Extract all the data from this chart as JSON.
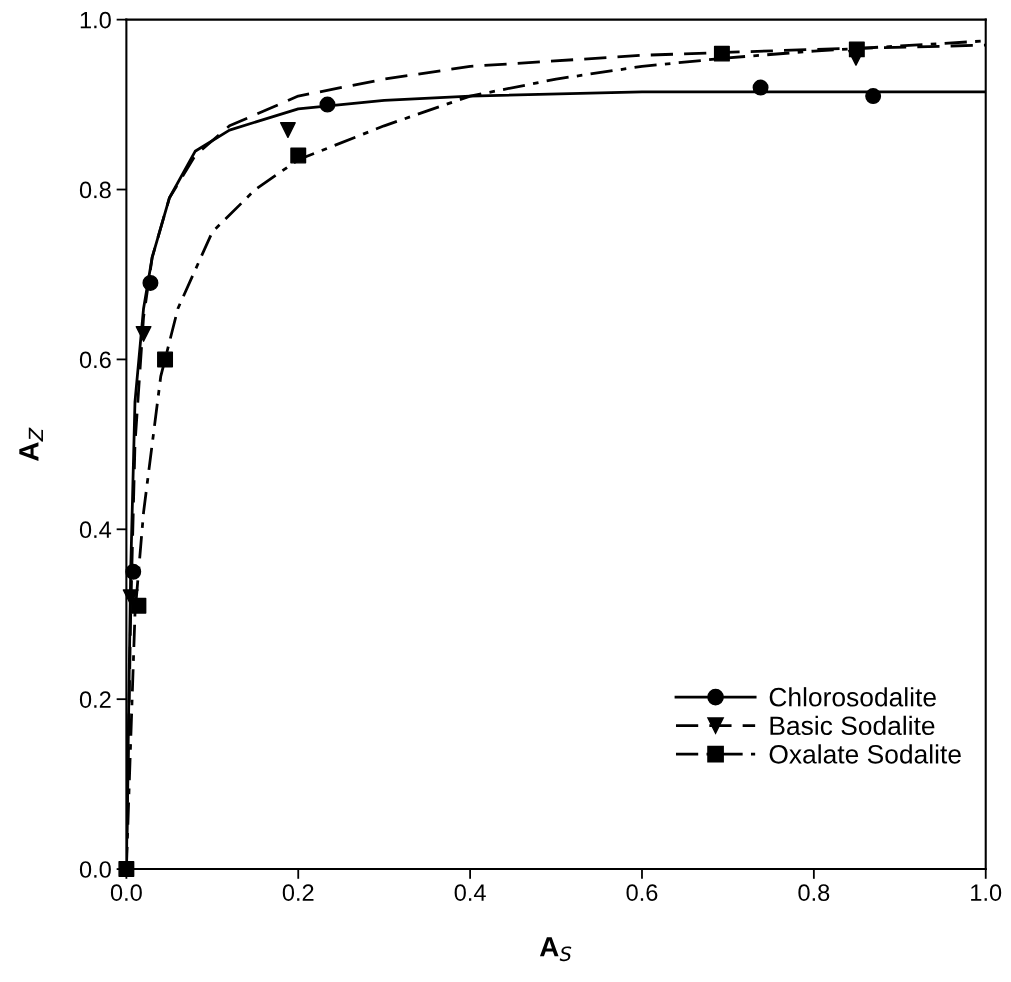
{
  "chart_data": {
    "type": "line",
    "xlabel": "A$_{S}$",
    "ylabel": "A$_{Z}$",
    "xlim": [
      0,
      1.0
    ],
    "ylim": [
      0,
      1.0
    ],
    "xticks": [
      {
        "value": 0,
        "label": "0.0"
      },
      {
        "value": 0.2,
        "label": "0.2"
      },
      {
        "value": 0.4,
        "label": "0.4"
      },
      {
        "value": 0.6,
        "label": "0.6"
      },
      {
        "value": 0.8,
        "label": "0.8"
      },
      {
        "value": 1.0,
        "label": "1.0"
      }
    ],
    "yticks": [
      {
        "value": 0,
        "label": "0.0"
      },
      {
        "value": 0.2,
        "label": "0.2"
      },
      {
        "value": 0.4,
        "label": "0.4"
      },
      {
        "value": 0.6,
        "label": "0.6"
      },
      {
        "value": 0.8,
        "label": "0.8"
      },
      {
        "value": 1.0,
        "label": "1.0"
      }
    ],
    "grid": false,
    "legend": "bottom right",
    "series": [
      {
        "type": "scatter",
        "name": "Chlorosodalite",
        "color": "#000000",
        "marker": "circle",
        "x": [
          0.008,
          0.028,
          0.234,
          0.738,
          0.869
        ],
        "values": [
          0.35,
          0.69,
          0.9,
          0.92,
          0.91
        ]
      },
      {
        "color": "#000000",
        "line_style": "solid",
        "x": [
          0,
          0.005,
          0.01,
          0.02,
          0.03,
          0.05,
          0.08,
          0.12,
          0.2,
          0.3,
          0.4,
          0.6,
          0.8,
          1.0
        ],
        "values": [
          0,
          0.35,
          0.55,
          0.66,
          0.72,
          0.79,
          0.845,
          0.87,
          0.895,
          0.905,
          0.91,
          0.915,
          0.915,
          0.915
        ]
      },
      {
        "type": "scatter",
        "name": "Basic Sodalite",
        "color": "#000000",
        "marker": "triangle",
        "x": [
          0.005,
          0.02,
          0.188,
          0.849
        ],
        "values": [
          0.32,
          0.63,
          0.87,
          0.955
        ]
      },
      {
        "color": "#000000",
        "line_style": "dashed",
        "x": [
          0,
          0.005,
          0.01,
          0.02,
          0.03,
          0.05,
          0.08,
          0.12,
          0.2,
          0.3,
          0.4,
          0.6,
          0.8,
          1.0
        ],
        "values": [
          0,
          0.3,
          0.5,
          0.65,
          0.72,
          0.79,
          0.84,
          0.875,
          0.91,
          0.93,
          0.945,
          0.958,
          0.965,
          0.97
        ]
      },
      {
        "type": "scatter",
        "name": "Oxalate Sodalite",
        "color": "#000000",
        "marker": "square",
        "x": [
          0,
          0.014,
          0.045,
          0.2,
          0.693,
          0.85
        ],
        "values": [
          0,
          0.31,
          0.6,
          0.84,
          0.96,
          0.965
        ]
      },
      {
        "color": "#000000",
        "line_style": "dashdot",
        "x": [
          0,
          0.01,
          0.02,
          0.04,
          0.06,
          0.1,
          0.15,
          0.2,
          0.3,
          0.4,
          0.5,
          0.6,
          0.7,
          0.8,
          1.0
        ],
        "values": [
          0,
          0.3,
          0.42,
          0.58,
          0.66,
          0.75,
          0.8,
          0.835,
          0.875,
          0.91,
          0.93,
          0.945,
          0.955,
          0.963,
          0.975
        ]
      }
    ]
  }
}
